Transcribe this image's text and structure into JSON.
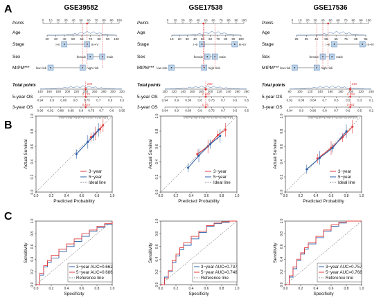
{
  "panels": {
    "a": "A",
    "b": "B",
    "c": "C"
  },
  "nomogram": {
    "row_labels": {
      "points": "Points",
      "age": "Age",
      "stage": "Stage",
      "sex": "Sex",
      "mipm": "MIPM***",
      "total": "Total points",
      "os5": "5-year OS",
      "os3": "3-year OS"
    },
    "stage_labels": [
      "I~II",
      "III~IV"
    ],
    "sex_labels": [
      "female",
      "male"
    ],
    "mipm_labels": [
      "low-risk",
      "high-risk"
    ],
    "columns": [
      {
        "title": "GSE39582",
        "points_ticks": [
          "0",
          "10",
          "20",
          "30",
          "40",
          "50",
          "60",
          "70",
          "80",
          "90",
          "100"
        ],
        "age_ticks": [
          "20",
          "30",
          "40",
          "50",
          "60",
          "70",
          "80",
          "90",
          "100"
        ],
        "total_ticks": [
          "140",
          "160",
          "180",
          "200",
          "220",
          "240",
          "260",
          "280",
          "300",
          "320"
        ],
        "os5_ticks": [
          "0.94",
          "0.9",
          "0.86",
          "0.8",
          "0.75",
          "0.7",
          "0.6",
          "0.5"
        ],
        "os3_ticks": [
          "0.96",
          "0.92",
          "0.88",
          "0.85",
          "0.8",
          "0.75",
          "0.7",
          "0.6",
          "0.55"
        ],
        "total_value": "235",
        "os5_value": "0.735",
        "os3_value": "0.824"
      },
      {
        "title": "GSE17538",
        "points_ticks": [
          "0",
          "10",
          "20",
          "30",
          "40",
          "50",
          "60",
          "70",
          "80",
          "90",
          "100"
        ],
        "age_ticks": [
          "10",
          "20",
          "30",
          "40",
          "50",
          "60",
          "70",
          "80",
          "90",
          "100"
        ],
        "total_ticks": [
          "100",
          "120",
          "140",
          "160",
          "180",
          "200",
          "220",
          "240",
          "260",
          "280"
        ],
        "os5_ticks": [
          "0.94",
          "0.9",
          "0.86",
          "0.8",
          "0.75",
          "0.7",
          "0.6",
          "0.5"
        ],
        "os3_ticks": [
          "0.94",
          "0.9",
          "0.86",
          "0.8",
          "0.75",
          "0.7",
          "0.6",
          "0.5"
        ],
        "total_value": "200",
        "os5_value": "0.650",
        "os3_value": "0.75"
      },
      {
        "title": "GSE17536",
        "points_ticks": [
          "0",
          "10",
          "20",
          "30",
          "40",
          "50",
          "60",
          "70",
          "80",
          "90",
          "100"
        ],
        "age_ticks": [
          "25",
          "35",
          "45",
          "55",
          "65",
          "75",
          "85",
          "95"
        ],
        "total_ticks": [
          "80",
          "100",
          "120",
          "140",
          "160",
          "180",
          "200",
          "220",
          "240"
        ],
        "os5_ticks": [
          "0.92",
          "0.88",
          "0.84",
          "0.7",
          "0.6",
          "0.5",
          "0.3",
          "0.1"
        ],
        "os3_ticks": [
          "0.94",
          "0.9",
          "0.86",
          "0.8",
          "0.7",
          "0.6",
          "0.5",
          "0.2"
        ],
        "total_value": "215",
        "os5_value": "0.293",
        "os3_value": "0.601"
      }
    ]
  },
  "calibration": {
    "xlabel": "Predicted Probability",
    "ylabel": "Actual Survival",
    "ticks": [
      "0.0",
      "0.2",
      "0.4",
      "0.6",
      "0.8",
      "1.0"
    ],
    "legend": [
      "3−year",
      "5−year",
      "Ideal line"
    ]
  },
  "roc": {
    "xlabel": "Specificity",
    "ylabel": "Sensitivity",
    "ticks": [
      "0.0",
      "0.2",
      "0.4",
      "0.6",
      "0.8",
      "1.0"
    ],
    "ref_label": "Reference line"
  },
  "colors": {
    "red": "#e03a3a",
    "blue": "#2a5fa8",
    "grey": "#888888"
  },
  "chart_data": [
    {
      "type": "line",
      "panel": "B",
      "dataset": "GSE39582",
      "xlim": [
        0,
        1
      ],
      "ylim": [
        0,
        1
      ],
      "series": [
        {
          "name": "3−year",
          "x": [
            0.72,
            0.78,
            0.84,
            0.88
          ],
          "y": [
            0.72,
            0.77,
            0.83,
            0.88
          ]
        },
        {
          "name": "5−year",
          "x": [
            0.53,
            0.68,
            0.75,
            0.82
          ],
          "y": [
            0.5,
            0.66,
            0.73,
            0.82
          ]
        },
        {
          "name": "Ideal line",
          "x": [
            0,
            1
          ],
          "y": [
            0,
            1
          ]
        }
      ]
    },
    {
      "type": "line",
      "panel": "B",
      "dataset": "GSE17538",
      "xlim": [
        0,
        1
      ],
      "ylim": [
        0,
        1
      ],
      "series": [
        {
          "name": "3−year",
          "x": [
            0.48,
            0.62,
            0.75,
            0.85
          ],
          "y": [
            0.5,
            0.6,
            0.75,
            0.82
          ]
        },
        {
          "name": "5−year",
          "x": [
            0.36,
            0.5,
            0.65,
            0.78
          ],
          "y": [
            0.32,
            0.48,
            0.63,
            0.74
          ]
        },
        {
          "name": "Ideal line",
          "x": [
            0,
            1
          ],
          "y": [
            0,
            1
          ]
        }
      ]
    },
    {
      "type": "line",
      "panel": "B",
      "dataset": "GSE17536",
      "xlim": [
        0,
        1
      ],
      "ylim": [
        0,
        1
      ],
      "series": [
        {
          "name": "3−year",
          "x": [
            0.42,
            0.6,
            0.75,
            0.88
          ],
          "y": [
            0.44,
            0.58,
            0.72,
            0.86
          ]
        },
        {
          "name": "5−year",
          "x": [
            0.28,
            0.45,
            0.62,
            0.8
          ],
          "y": [
            0.3,
            0.45,
            0.58,
            0.8
          ]
        },
        {
          "name": "Ideal line",
          "x": [
            0,
            1
          ],
          "y": [
            0,
            1
          ]
        }
      ]
    },
    {
      "type": "line",
      "panel": "C",
      "dataset": "GSE39582",
      "xlim": [
        0,
        1
      ],
      "ylim": [
        0,
        1
      ],
      "series": [
        {
          "name": "3−year AUC=0.662",
          "x": [
            0,
            0.05,
            0.1,
            0.15,
            0.2,
            0.3,
            0.4,
            0.5,
            0.6,
            0.7,
            0.8,
            0.9,
            1.0
          ],
          "y": [
            0,
            0.15,
            0.28,
            0.35,
            0.42,
            0.52,
            0.6,
            0.68,
            0.76,
            0.84,
            0.9,
            0.95,
            1.0
          ]
        },
        {
          "name": "5−year AUC=0.686",
          "x": [
            0,
            0.05,
            0.1,
            0.15,
            0.2,
            0.3,
            0.4,
            0.5,
            0.6,
            0.7,
            0.8,
            0.9,
            1.0
          ],
          "y": [
            0,
            0.18,
            0.3,
            0.38,
            0.46,
            0.56,
            0.64,
            0.72,
            0.8,
            0.86,
            0.92,
            0.96,
            1.0
          ]
        },
        {
          "name": "Reference line",
          "x": [
            0,
            1
          ],
          "y": [
            0,
            1
          ]
        }
      ]
    },
    {
      "type": "line",
      "panel": "C",
      "dataset": "GSE17538",
      "xlim": [
        0,
        1
      ],
      "ylim": [
        0,
        1
      ],
      "series": [
        {
          "name": "3−year AUC=0.737",
          "x": [
            0,
            0.05,
            0.1,
            0.15,
            0.2,
            0.25,
            0.3,
            0.4,
            0.5,
            0.6,
            0.7,
            0.8,
            0.9,
            1.0
          ],
          "y": [
            0,
            0.12,
            0.2,
            0.35,
            0.45,
            0.55,
            0.62,
            0.72,
            0.82,
            0.92,
            0.96,
            0.98,
            1.0,
            1.0
          ]
        },
        {
          "name": "5−year AUC=0.748",
          "x": [
            0,
            0.05,
            0.1,
            0.15,
            0.2,
            0.25,
            0.3,
            0.4,
            0.5,
            0.6,
            0.7,
            0.8,
            0.9,
            1.0
          ],
          "y": [
            0,
            0.1,
            0.22,
            0.38,
            0.48,
            0.58,
            0.66,
            0.76,
            0.84,
            0.93,
            0.97,
            0.99,
            1.0,
            1.0
          ]
        },
        {
          "name": "Reference line",
          "x": [
            0,
            1
          ],
          "y": [
            0,
            1
          ]
        }
      ]
    },
    {
      "type": "line",
      "panel": "C",
      "dataset": "GSE17536",
      "xlim": [
        0,
        1
      ],
      "ylim": [
        0,
        1
      ],
      "series": [
        {
          "name": "3−year AUC=0.757",
          "x": [
            0,
            0.05,
            0.1,
            0.15,
            0.2,
            0.25,
            0.3,
            0.4,
            0.5,
            0.6,
            0.7,
            0.8,
            0.9,
            1.0
          ],
          "y": [
            0,
            0.12,
            0.25,
            0.38,
            0.48,
            0.56,
            0.64,
            0.74,
            0.84,
            0.92,
            0.97,
            1.0,
            1.0,
            1.0
          ]
        },
        {
          "name": "5−year AUC=0.768",
          "x": [
            0,
            0.05,
            0.1,
            0.15,
            0.2,
            0.25,
            0.3,
            0.4,
            0.5,
            0.6,
            0.7,
            0.8,
            0.9,
            1.0
          ],
          "y": [
            0,
            0.14,
            0.28,
            0.4,
            0.5,
            0.58,
            0.66,
            0.76,
            0.86,
            0.94,
            0.98,
            1.0,
            1.0,
            1.0
          ]
        },
        {
          "name": "Reference line",
          "x": [
            0,
            1
          ],
          "y": [
            0,
            1
          ]
        }
      ]
    }
  ]
}
